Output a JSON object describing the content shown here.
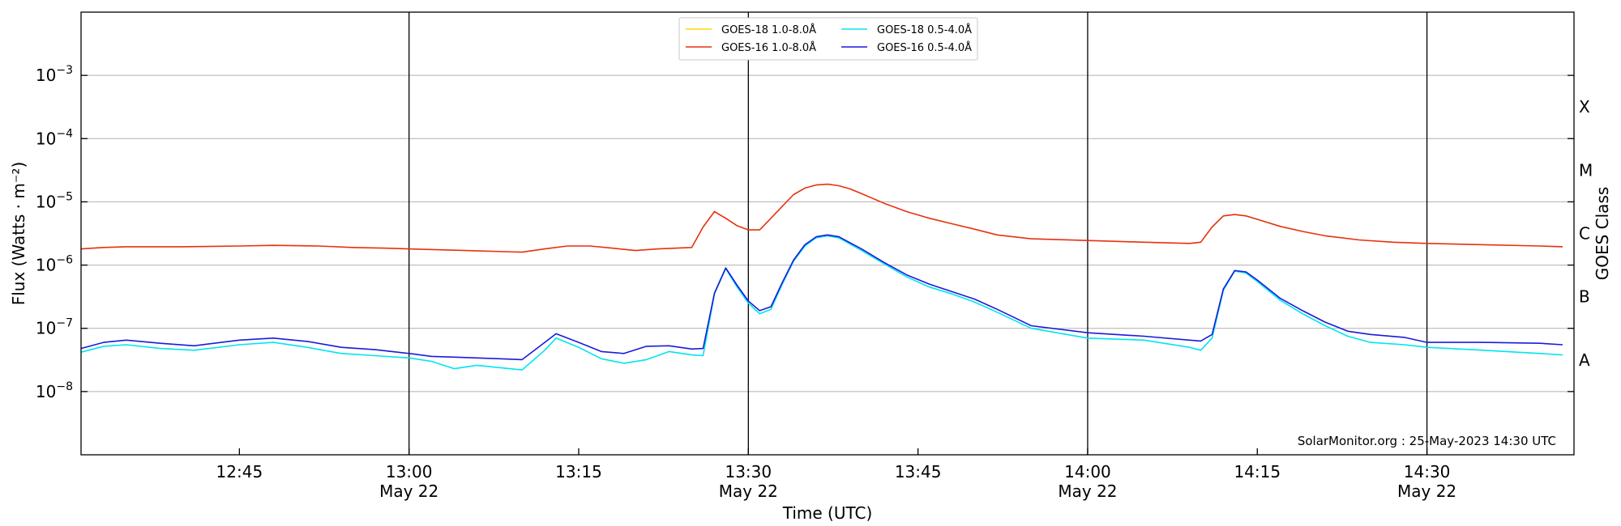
{
  "chart_data": {
    "type": "line",
    "title": "",
    "xlabel": "Time (UTC)",
    "ylabel": "Flux (Watts · m⁻²)",
    "ylabel_right": "GOES Class",
    "y_scale": "log",
    "ylim": [
      1e-09,
      0.01
    ],
    "xlim": [
      "2023-05-22 12:31:00",
      "2023-05-22 14:43:00"
    ],
    "grid": "horizontal gridlines at decades, vertical lines at half hours",
    "y_ticks": [
      {
        "value": 1e-08,
        "base": "10",
        "exp": "−8"
      },
      {
        "value": 1e-07,
        "base": "10",
        "exp": "−7"
      },
      {
        "value": 1e-06,
        "base": "10",
        "exp": "−6"
      },
      {
        "value": 1e-05,
        "base": "10",
        "exp": "−5"
      },
      {
        "value": 0.0001,
        "base": "10",
        "exp": "−4"
      },
      {
        "value": 0.001,
        "base": "10",
        "exp": "−3"
      }
    ],
    "x_ticks": [
      {
        "time": "2023-05-22 12:45",
        "label": "12:45",
        "sublabel": ""
      },
      {
        "time": "2023-05-22 13:00",
        "label": "13:00",
        "sublabel": "May 22"
      },
      {
        "time": "2023-05-22 13:15",
        "label": "13:15",
        "sublabel": ""
      },
      {
        "time": "2023-05-22 13:30",
        "label": "13:30",
        "sublabel": "May 22"
      },
      {
        "time": "2023-05-22 13:45",
        "label": "13:45",
        "sublabel": ""
      },
      {
        "time": "2023-05-22 14:00",
        "label": "14:00",
        "sublabel": "May 22"
      },
      {
        "time": "2023-05-22 14:15",
        "label": "14:15",
        "sublabel": ""
      },
      {
        "time": "2023-05-22 14:30",
        "label": "14:30",
        "sublabel": "May 22"
      }
    ],
    "vlines": [
      "2023-05-22 13:00",
      "2023-05-22 13:30",
      "2023-05-22 14:00",
      "2023-05-22 14:30"
    ],
    "goes_classes": [
      {
        "label": "A",
        "value": 3.16e-08
      },
      {
        "label": "B",
        "value": 3.16e-07
      },
      {
        "label": "C",
        "value": 3.16e-06
      },
      {
        "label": "M",
        "value": 3.16e-05
      },
      {
        "label": "X",
        "value": 0.000316
      }
    ],
    "legend_position": "top-center",
    "credit": "SolarMonitor.org : 25-May-2023 14:30 UTC",
    "series": [
      {
        "name": "GOES-18 1.0-8.0Å",
        "color": "#ffd700",
        "x": [],
        "y": []
      },
      {
        "name": "GOES-16 1.0-8.0Å",
        "color": "#e8300e",
        "x": [
          "2023-05-22 12:31",
          "2023-05-22 12:33",
          "2023-05-22 12:35",
          "2023-05-22 12:40",
          "2023-05-22 12:45",
          "2023-05-22 12:48",
          "2023-05-22 12:52",
          "2023-05-22 12:55",
          "2023-05-22 12:58",
          "2023-05-22 13:00",
          "2023-05-22 13:05",
          "2023-05-22 13:10",
          "2023-05-22 13:12",
          "2023-05-22 13:14",
          "2023-05-22 13:16",
          "2023-05-22 13:18",
          "2023-05-22 13:20",
          "2023-05-22 13:22",
          "2023-05-22 13:25",
          "2023-05-22 13:26",
          "2023-05-22 13:27",
          "2023-05-22 13:28",
          "2023-05-22 13:29",
          "2023-05-22 13:30",
          "2023-05-22 13:31",
          "2023-05-22 13:32",
          "2023-05-22 13:33",
          "2023-05-22 13:34",
          "2023-05-22 13:35",
          "2023-05-22 13:36",
          "2023-05-22 13:37",
          "2023-05-22 13:38",
          "2023-05-22 13:39",
          "2023-05-22 13:40",
          "2023-05-22 13:42",
          "2023-05-22 13:44",
          "2023-05-22 13:46",
          "2023-05-22 13:48",
          "2023-05-22 13:50",
          "2023-05-22 13:52",
          "2023-05-22 13:55",
          "2023-05-22 14:00",
          "2023-05-22 14:05",
          "2023-05-22 14:09",
          "2023-05-22 14:10",
          "2023-05-22 14:11",
          "2023-05-22 14:12",
          "2023-05-22 14:13",
          "2023-05-22 14:14",
          "2023-05-22 14:15",
          "2023-05-22 14:17",
          "2023-05-22 14:19",
          "2023-05-22 14:21",
          "2023-05-22 14:24",
          "2023-05-22 14:27",
          "2023-05-22 14:30",
          "2023-05-22 14:35",
          "2023-05-22 14:40",
          "2023-05-22 14:42"
        ],
        "y": [
          1.8e-06,
          1.9e-06,
          1.95e-06,
          1.95e-06,
          2e-06,
          2.05e-06,
          2e-06,
          1.9e-06,
          1.85e-06,
          1.8e-06,
          1.7e-06,
          1.6e-06,
          1.8e-06,
          2e-06,
          2e-06,
          1.85e-06,
          1.7e-06,
          1.8e-06,
          1.9e-06,
          4e-06,
          7e-06,
          5.5e-06,
          4.2e-06,
          3.6e-06,
          3.6e-06,
          5.5e-06,
          8.5e-06,
          1.3e-05,
          1.65e-05,
          1.85e-05,
          1.9e-05,
          1.8e-05,
          1.6e-05,
          1.35e-05,
          9.5e-06,
          7e-06,
          5.5e-06,
          4.5e-06,
          3.7e-06,
          3e-06,
          2.6e-06,
          2.45e-06,
          2.3e-06,
          2.2e-06,
          2.3e-06,
          4e-06,
          6e-06,
          6.3e-06,
          6e-06,
          5.3e-06,
          4.1e-06,
          3.4e-06,
          2.9e-06,
          2.5e-06,
          2.3e-06,
          2.2e-06,
          2.1e-06,
          2e-06,
          1.95e-06
        ]
      },
      {
        "name": "GOES-18 0.5-4.0Å",
        "color": "#00e5ee",
        "x": [
          "2023-05-22 12:31",
          "2023-05-22 12:33",
          "2023-05-22 12:35",
          "2023-05-22 12:38",
          "2023-05-22 12:41",
          "2023-05-22 12:45",
          "2023-05-22 12:48",
          "2023-05-22 12:51",
          "2023-05-22 12:54",
          "2023-05-22 12:57",
          "2023-05-22 13:00",
          "2023-05-22 13:02",
          "2023-05-22 13:04",
          "2023-05-22 13:06",
          "2023-05-22 13:10",
          "2023-05-22 13:12",
          "2023-05-22 13:13",
          "2023-05-22 13:15",
          "2023-05-22 13:17",
          "2023-05-22 13:19",
          "2023-05-22 13:21",
          "2023-05-22 13:23",
          "2023-05-22 13:25",
          "2023-05-22 13:26",
          "2023-05-22 13:27",
          "2023-05-22 13:28",
          "2023-05-22 13:29",
          "2023-05-22 13:30",
          "2023-05-22 13:31",
          "2023-05-22 13:32",
          "2023-05-22 13:33",
          "2023-05-22 13:34",
          "2023-05-22 13:35",
          "2023-05-22 13:36",
          "2023-05-22 13:37",
          "2023-05-22 13:38",
          "2023-05-22 13:40",
          "2023-05-22 13:42",
          "2023-05-22 13:44",
          "2023-05-22 13:46",
          "2023-05-22 13:48",
          "2023-05-22 13:50",
          "2023-05-22 13:52",
          "2023-05-22 13:55",
          "2023-05-22 14:00",
          "2023-05-22 14:05",
          "2023-05-22 14:09",
          "2023-05-22 14:10",
          "2023-05-22 14:11",
          "2023-05-22 14:12",
          "2023-05-22 14:13",
          "2023-05-22 14:14",
          "2023-05-22 14:15",
          "2023-05-22 14:17",
          "2023-05-22 14:19",
          "2023-05-22 14:21",
          "2023-05-22 14:23",
          "2023-05-22 14:25",
          "2023-05-22 14:28",
          "2023-05-22 14:30",
          "2023-05-22 14:35",
          "2023-05-22 14:40",
          "2023-05-22 14:42"
        ],
        "y": [
          4.2e-08,
          5.2e-08,
          5.5e-08,
          4.8e-08,
          4.5e-08,
          5.5e-08,
          6e-08,
          5e-08,
          4e-08,
          3.7e-08,
          3.4e-08,
          3e-08,
          2.3e-08,
          2.6e-08,
          2.2e-08,
          4.5e-08,
          7e-08,
          5e-08,
          3.3e-08,
          2.8e-08,
          3.2e-08,
          4.3e-08,
          3.8e-08,
          3.7e-08,
          3.5e-07,
          8.8e-07,
          4.5e-07,
          2.5e-07,
          1.7e-07,
          2e-07,
          5e-07,
          1.15e-06,
          2e-06,
          2.7e-06,
          2.9e-06,
          2.7e-06,
          1.7e-06,
          1.05e-06,
          6.5e-07,
          4.5e-07,
          3.5e-07,
          2.6e-07,
          1.8e-07,
          1e-07,
          7e-08,
          6.5e-08,
          5e-08,
          4.5e-08,
          7e-08,
          4e-07,
          8e-07,
          7.5e-07,
          5.5e-07,
          2.8e-07,
          1.7e-07,
          1.1e-07,
          7.5e-08,
          6e-08,
          5.5e-08,
          5e-08,
          4.5e-08,
          4e-08,
          3.8e-08
        ]
      },
      {
        "name": "GOES-16 0.5-4.0Å",
        "color": "#1a1adc",
        "x": [
          "2023-05-22 12:31",
          "2023-05-22 12:33",
          "2023-05-22 12:35",
          "2023-05-22 12:38",
          "2023-05-22 12:41",
          "2023-05-22 12:45",
          "2023-05-22 12:48",
          "2023-05-22 12:51",
          "2023-05-22 12:54",
          "2023-05-22 12:57",
          "2023-05-22 13:00",
          "2023-05-22 13:02",
          "2023-05-22 13:04",
          "2023-05-22 13:06",
          "2023-05-22 13:10",
          "2023-05-22 13:12",
          "2023-05-22 13:13",
          "2023-05-22 13:15",
          "2023-05-22 13:17",
          "2023-05-22 13:19",
          "2023-05-22 13:21",
          "2023-05-22 13:23",
          "2023-05-22 13:25",
          "2023-05-22 13:26",
          "2023-05-22 13:27",
          "2023-05-22 13:28",
          "2023-05-22 13:29",
          "2023-05-22 13:30",
          "2023-05-22 13:31",
          "2023-05-22 13:32",
          "2023-05-22 13:33",
          "2023-05-22 13:34",
          "2023-05-22 13:35",
          "2023-05-22 13:36",
          "2023-05-22 13:37",
          "2023-05-22 13:38",
          "2023-05-22 13:40",
          "2023-05-22 13:42",
          "2023-05-22 13:44",
          "2023-05-22 13:46",
          "2023-05-22 13:48",
          "2023-05-22 13:50",
          "2023-05-22 13:52",
          "2023-05-22 13:55",
          "2023-05-22 14:00",
          "2023-05-22 14:05",
          "2023-05-22 14:09",
          "2023-05-22 14:10",
          "2023-05-22 14:11",
          "2023-05-22 14:12",
          "2023-05-22 14:13",
          "2023-05-22 14:14",
          "2023-05-22 14:15",
          "2023-05-22 14:17",
          "2023-05-22 14:19",
          "2023-05-22 14:21",
          "2023-05-22 14:23",
          "2023-05-22 14:25",
          "2023-05-22 14:28",
          "2023-05-22 14:30",
          "2023-05-22 14:35",
          "2023-05-22 14:40",
          "2023-05-22 14:42"
        ],
        "y": [
          4.8e-08,
          6e-08,
          6.5e-08,
          5.8e-08,
          5.3e-08,
          6.5e-08,
          7e-08,
          6.2e-08,
          5e-08,
          4.6e-08,
          4e-08,
          3.6e-08,
          3.5e-08,
          3.4e-08,
          3.2e-08,
          6e-08,
          8.2e-08,
          6e-08,
          4.3e-08,
          4e-08,
          5.2e-08,
          5.3e-08,
          4.7e-08,
          4.8e-08,
          3.6e-07,
          9e-07,
          4.8e-07,
          2.7e-07,
          1.9e-07,
          2.2e-07,
          5.3e-07,
          1.2e-06,
          2.1e-06,
          2.8e-06,
          3e-06,
          2.8e-06,
          1.8e-06,
          1.1e-06,
          7e-07,
          5e-07,
          3.8e-07,
          2.9e-07,
          2e-07,
          1.1e-07,
          8.5e-08,
          7.5e-08,
          6.5e-08,
          6.3e-08,
          8e-08,
          4.2e-07,
          8.2e-07,
          7.8e-07,
          5.8e-07,
          3e-07,
          1.9e-07,
          1.25e-07,
          9e-08,
          8e-08,
          7.2e-08,
          6e-08,
          6e-08,
          5.8e-08,
          5.5e-08
        ]
      }
    ]
  }
}
